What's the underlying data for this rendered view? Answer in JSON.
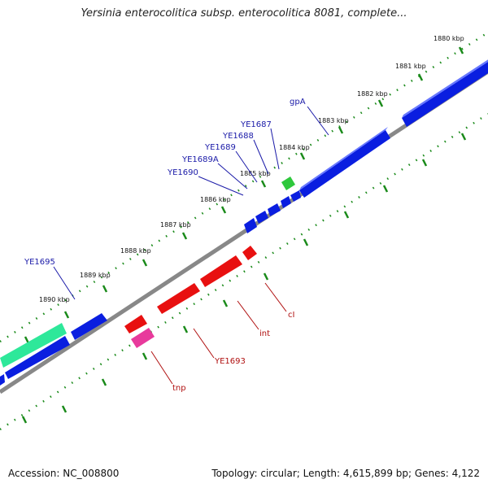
{
  "title": "Yersinia enterocolitica subsp. enterocolitica 8081, complete...",
  "footer": {
    "accession": "Accession: NC_008800",
    "stats": "Topology: circular; Length: 4,615,899 bp; Genes: 4,122"
  },
  "colors": {
    "blue": "#0a1ee0",
    "red": "#e81010",
    "green": "#2ec83c",
    "teal": "#2ee89a",
    "pink": "#e83a9c",
    "backbone": "#888888",
    "ticks": "#1a8a1a",
    "label_top": "#1a1aa8",
    "label_bottom": "#b01010"
  },
  "kbp_labels": [
    "1880 kbp",
    "1881 kbp",
    "1882 kbp",
    "1883 kbp",
    "1884 kbp",
    "1885 kbp",
    "1886 kbp",
    "1887 kbp",
    "1888 kbp",
    "1889 kbp",
    "1890 kbp"
  ],
  "top_gene_labels": [
    "gpA",
    "YE1687",
    "YE1688",
    "YE1689",
    "YE1689A",
    "YE1690",
    "YE1695"
  ],
  "bottom_gene_labels": [
    "cI",
    "int",
    "YE1693",
    "tnp"
  ]
}
